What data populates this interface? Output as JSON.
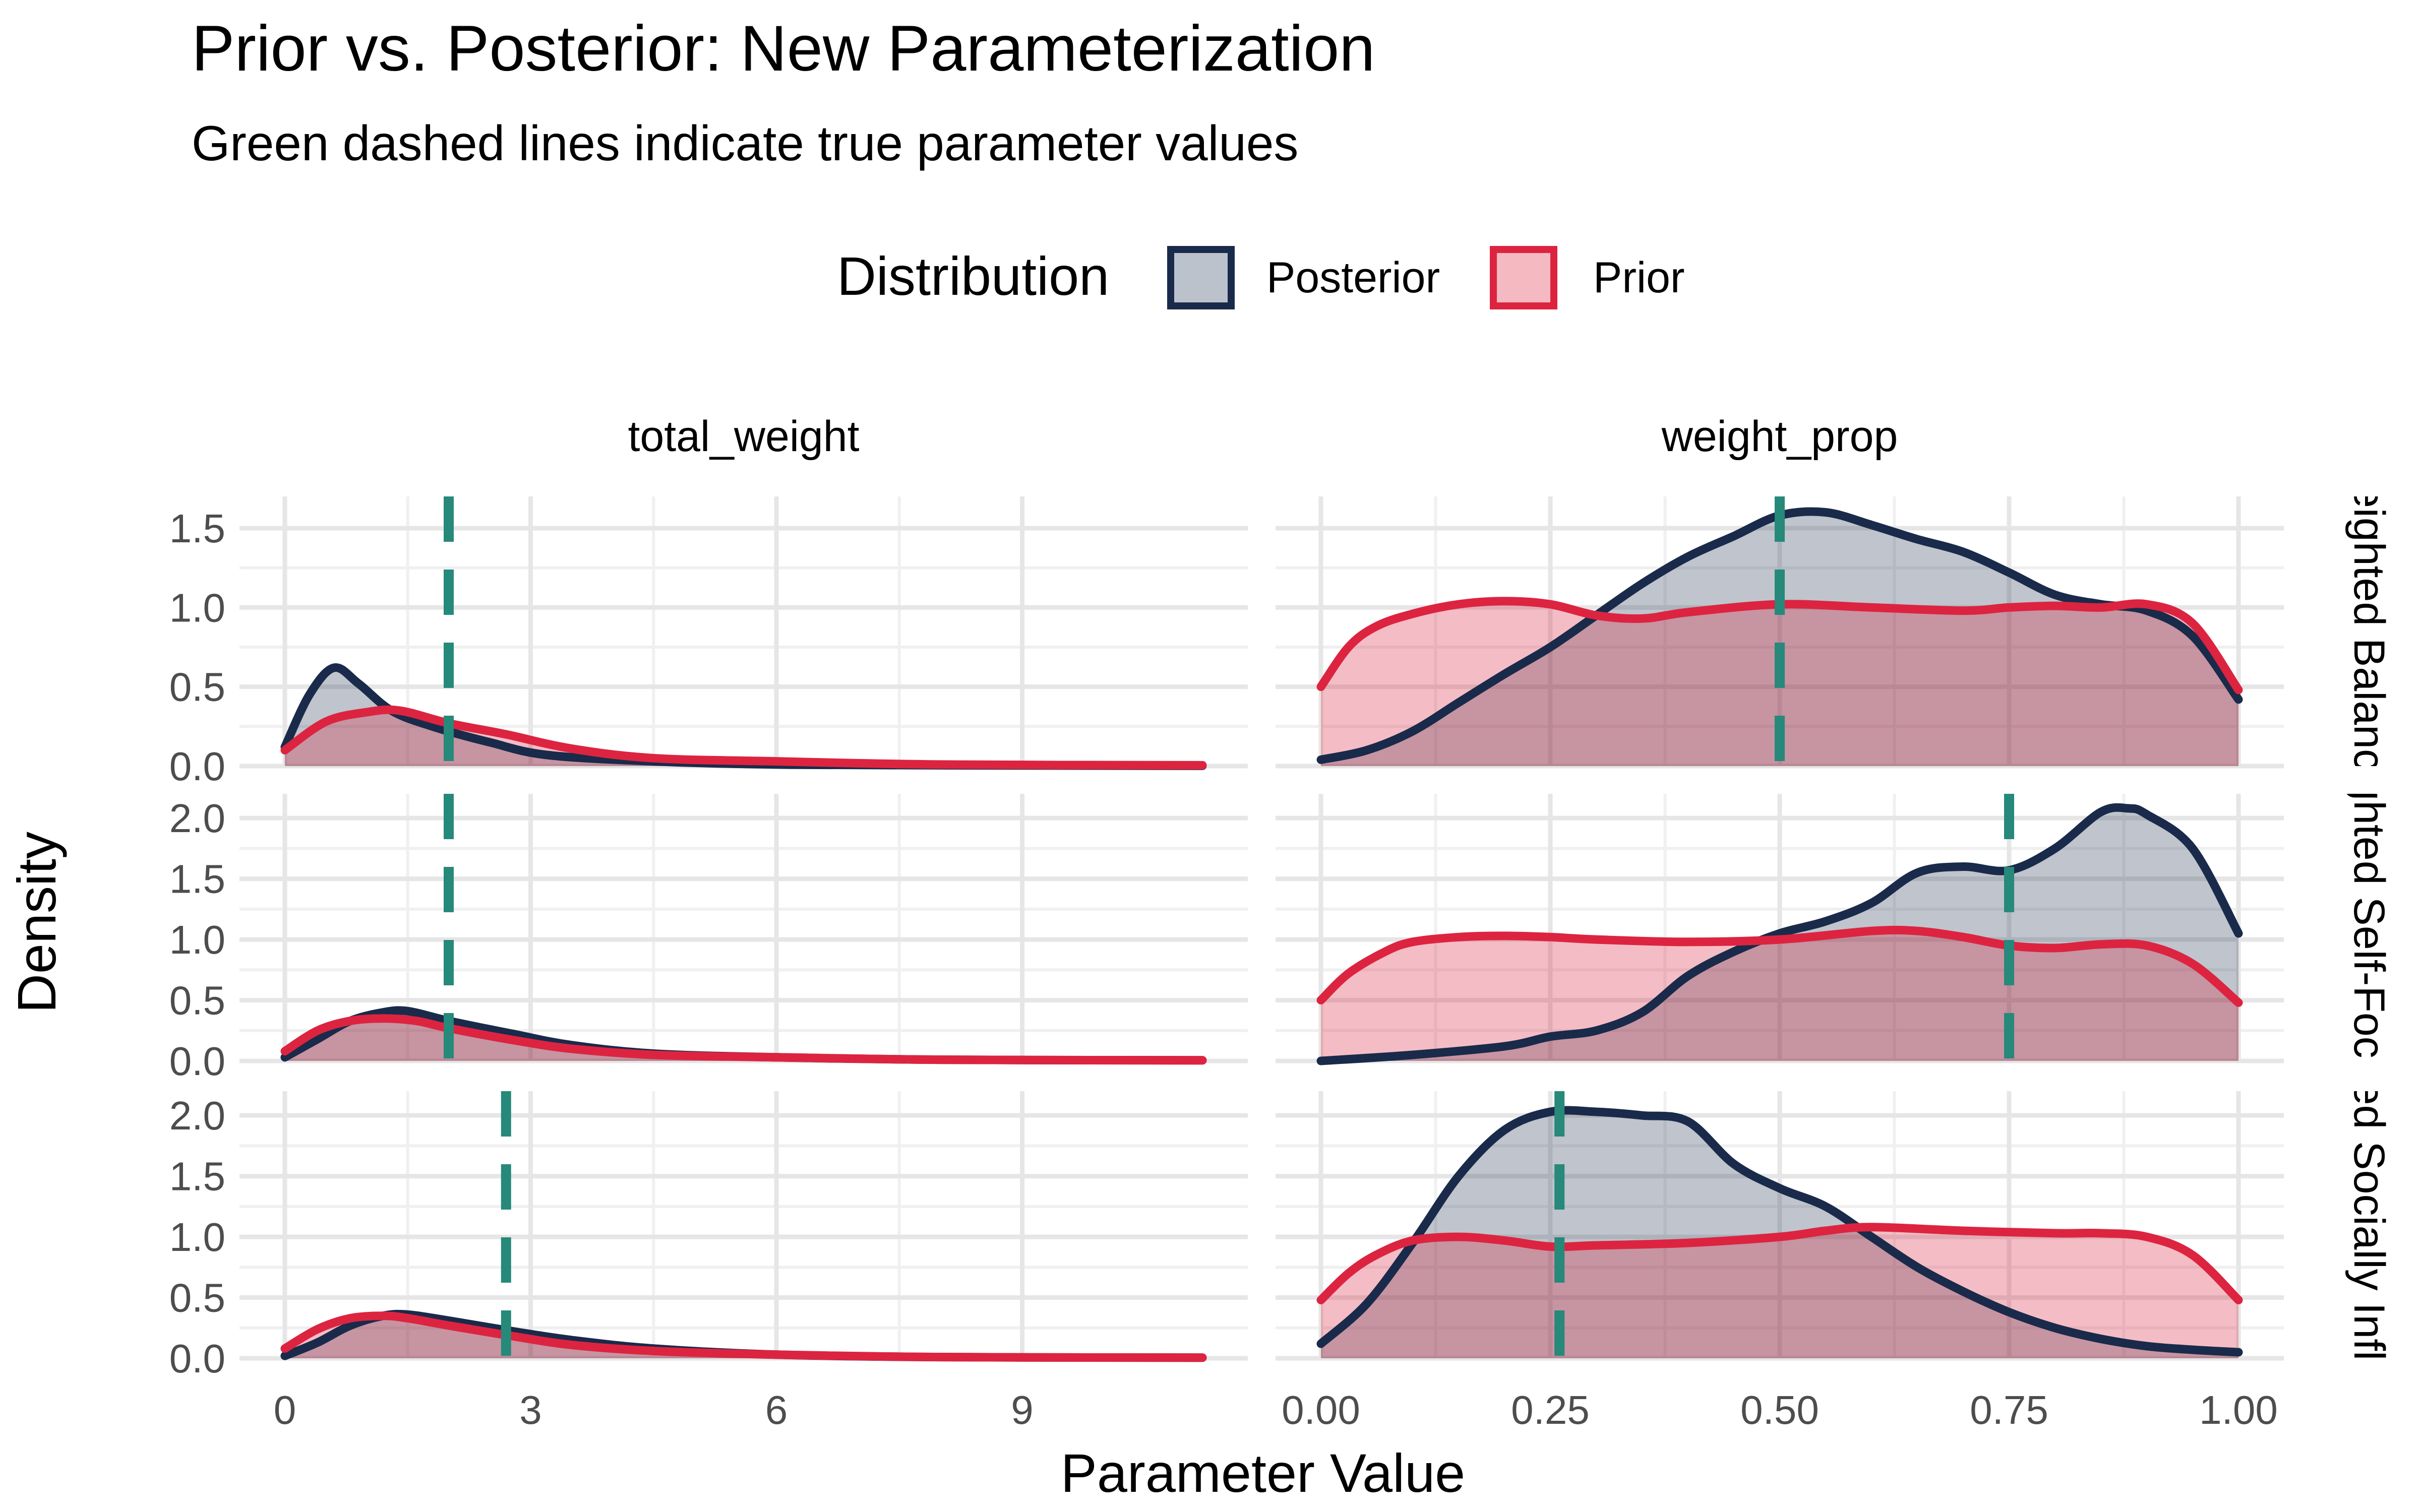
{
  "chart_data": {
    "type": "area",
    "title": "Prior vs. Posterior: New Parameterization",
    "subtitle": "Green dashed lines indicate true parameter values",
    "xlabel": "Parameter Value",
    "ylabel": "Density",
    "legend": {
      "title": "Distribution",
      "position": "top",
      "entries": [
        {
          "name": "Posterior",
          "line_color": "#1a2a4a",
          "fill_color": "#bcc2cc"
        },
        {
          "name": "Prior",
          "line_color": "#dc2440",
          "fill_color": "#f4b9c1"
        }
      ]
    },
    "grid": true,
    "true_value_color": "#26897a",
    "columns": [
      {
        "label": "total_weight",
        "xlim": [
          0,
          11.2
        ],
        "xticks": [
          0,
          3,
          6,
          9
        ],
        "xtick_labels": [
          "0",
          "3",
          "6",
          "9"
        ],
        "x_extent": [
          0,
          11.2
        ]
      },
      {
        "label": "weight_prop",
        "xlim": [
          0,
          1
        ],
        "xticks": [
          0,
          0.25,
          0.5,
          0.75,
          1
        ],
        "xtick_labels": [
          "0.00",
          "0.25",
          "0.50",
          "0.75",
          "1.00"
        ],
        "x_extent": [
          0,
          1
        ]
      }
    ],
    "rows": [
      {
        "label": "Weighted Balanced",
        "ylim": [
          0,
          1.7
        ],
        "yticks": [
          0,
          0.5,
          1.0,
          1.5
        ],
        "ytick_labels": [
          "0.0",
          "0.5",
          "1.0",
          "1.5"
        ]
      },
      {
        "label": "Weighted Self-Focused",
        "ylim": [
          0,
          2.2
        ],
        "yticks": [
          0,
          0.5,
          1.0,
          1.5,
          2.0
        ],
        "ytick_labels": [
          "0.0",
          "0.5",
          "1.0",
          "1.5",
          "2.0"
        ]
      },
      {
        "label": "Weighted Socially Influenced",
        "ylim": [
          0,
          2.2
        ],
        "yticks": [
          0,
          0.5,
          1.0,
          1.5,
          2.0
        ],
        "ytick_labels": [
          "0.0",
          "0.5",
          "1.0",
          "1.5",
          "2.0"
        ]
      }
    ],
    "panels": [
      {
        "row": 0,
        "col": 0,
        "true_value": 2.0,
        "series": [
          {
            "name": "Posterior",
            "x": [
              0,
              0.3,
              0.6,
              0.9,
              1.3,
              1.8,
              2.5,
              3.2,
              4.5,
              6,
              8,
              11.2
            ],
            "y": [
              0.12,
              0.45,
              0.62,
              0.52,
              0.35,
              0.25,
              0.15,
              0.07,
              0.03,
              0.01,
              0.005,
              0.002
            ]
          },
          {
            "name": "Prior",
            "x": [
              0,
              0.5,
              1.0,
              1.4,
              2.0,
              2.7,
              3.5,
              4.5,
              6,
              8,
              11.2
            ],
            "y": [
              0.1,
              0.28,
              0.34,
              0.35,
              0.27,
              0.2,
              0.11,
              0.05,
              0.03,
              0.01,
              0.005
            ]
          }
        ]
      },
      {
        "row": 0,
        "col": 1,
        "true_value": 0.5,
        "series": [
          {
            "name": "Posterior",
            "x": [
              0,
              0.05,
              0.1,
              0.15,
              0.2,
              0.25,
              0.3,
              0.35,
              0.4,
              0.45,
              0.5,
              0.55,
              0.6,
              0.65,
              0.7,
              0.75,
              0.8,
              0.85,
              0.9,
              0.95,
              1.0
            ],
            "y": [
              0.04,
              0.1,
              0.22,
              0.4,
              0.58,
              0.75,
              0.95,
              1.15,
              1.32,
              1.45,
              1.58,
              1.6,
              1.52,
              1.43,
              1.35,
              1.22,
              1.08,
              1.02,
              0.98,
              0.82,
              0.42
            ]
          },
          {
            "name": "Prior",
            "x": [
              0,
              0.03,
              0.06,
              0.1,
              0.15,
              0.2,
              0.25,
              0.3,
              0.35,
              0.4,
              0.5,
              0.6,
              0.7,
              0.75,
              0.8,
              0.85,
              0.9,
              0.95,
              1.0
            ],
            "y": [
              0.5,
              0.75,
              0.88,
              0.96,
              1.02,
              1.04,
              1.02,
              0.95,
              0.93,
              0.97,
              1.02,
              1.0,
              0.98,
              1.0,
              1.01,
              1.0,
              1.02,
              0.9,
              0.48
            ]
          }
        ]
      },
      {
        "row": 1,
        "col": 0,
        "true_value": 2.0,
        "series": [
          {
            "name": "Posterior",
            "x": [
              0,
              0.4,
              0.8,
              1.2,
              1.5,
              2.0,
              2.8,
              3.5,
              4.5,
              6,
              8,
              11.2
            ],
            "y": [
              0.03,
              0.18,
              0.33,
              0.4,
              0.41,
              0.33,
              0.22,
              0.13,
              0.06,
              0.03,
              0.01,
              0.005
            ]
          },
          {
            "name": "Prior",
            "x": [
              0,
              0.4,
              0.8,
              1.2,
              1.6,
              2.0,
              2.8,
              3.5,
              4.5,
              6,
              8,
              11.2
            ],
            "y": [
              0.08,
              0.25,
              0.33,
              0.35,
              0.33,
              0.27,
              0.17,
              0.1,
              0.05,
              0.03,
              0.01,
              0.005
            ]
          }
        ]
      },
      {
        "row": 1,
        "col": 1,
        "true_value": 0.75,
        "series": [
          {
            "name": "Posterior",
            "x": [
              0,
              0.1,
              0.2,
              0.25,
              0.3,
              0.35,
              0.4,
              0.45,
              0.5,
              0.55,
              0.6,
              0.65,
              0.7,
              0.75,
              0.8,
              0.85,
              0.88,
              0.9,
              0.95,
              1.0
            ],
            "y": [
              0.0,
              0.05,
              0.12,
              0.2,
              0.25,
              0.4,
              0.7,
              0.9,
              1.05,
              1.15,
              1.3,
              1.55,
              1.6,
              1.57,
              1.75,
              2.05,
              2.08,
              2.03,
              1.75,
              1.05
            ]
          },
          {
            "name": "Prior",
            "x": [
              0,
              0.03,
              0.07,
              0.1,
              0.15,
              0.2,
              0.25,
              0.3,
              0.4,
              0.5,
              0.6,
              0.65,
              0.7,
              0.75,
              0.8,
              0.85,
              0.9,
              0.95,
              1.0
            ],
            "y": [
              0.5,
              0.72,
              0.9,
              0.98,
              1.02,
              1.03,
              1.02,
              1.0,
              0.98,
              1.0,
              1.07,
              1.07,
              1.02,
              0.95,
              0.93,
              0.96,
              0.95,
              0.8,
              0.48
            ]
          }
        ]
      },
      {
        "row": 2,
        "col": 0,
        "true_value": 2.7,
        "series": [
          {
            "name": "Posterior",
            "x": [
              0,
              0.4,
              0.8,
              1.2,
              1.5,
              2.0,
              2.8,
              3.5,
              4.5,
              6,
              8,
              11.2
            ],
            "y": [
              0.02,
              0.13,
              0.27,
              0.35,
              0.36,
              0.31,
              0.22,
              0.15,
              0.08,
              0.03,
              0.01,
              0.005
            ]
          },
          {
            "name": "Prior",
            "x": [
              0,
              0.4,
              0.8,
              1.2,
              1.5,
              2.0,
              2.8,
              3.5,
              4.5,
              6,
              8,
              11.2
            ],
            "y": [
              0.08,
              0.24,
              0.33,
              0.35,
              0.33,
              0.27,
              0.18,
              0.11,
              0.06,
              0.03,
              0.01,
              0.005
            ]
          }
        ]
      },
      {
        "row": 2,
        "col": 1,
        "true_value": 0.26,
        "series": [
          {
            "name": "Posterior",
            "x": [
              0,
              0.05,
              0.1,
              0.15,
              0.2,
              0.25,
              0.3,
              0.35,
              0.4,
              0.45,
              0.5,
              0.55,
              0.6,
              0.65,
              0.7,
              0.75,
              0.8,
              0.85,
              0.9,
              0.95,
              1.0
            ],
            "y": [
              0.12,
              0.45,
              0.95,
              1.5,
              1.88,
              2.03,
              2.03,
              2.0,
              1.95,
              1.6,
              1.4,
              1.25,
              1.0,
              0.75,
              0.55,
              0.38,
              0.25,
              0.16,
              0.1,
              0.07,
              0.05
            ]
          },
          {
            "name": "Prior",
            "x": [
              0,
              0.03,
              0.06,
              0.1,
              0.15,
              0.2,
              0.25,
              0.3,
              0.4,
              0.5,
              0.55,
              0.6,
              0.7,
              0.8,
              0.85,
              0.9,
              0.95,
              1.0
            ],
            "y": [
              0.48,
              0.7,
              0.85,
              0.97,
              1.0,
              0.97,
              0.92,
              0.93,
              0.95,
              1.0,
              1.05,
              1.08,
              1.05,
              1.03,
              1.03,
              1.0,
              0.85,
              0.48
            ]
          }
        ]
      }
    ]
  }
}
